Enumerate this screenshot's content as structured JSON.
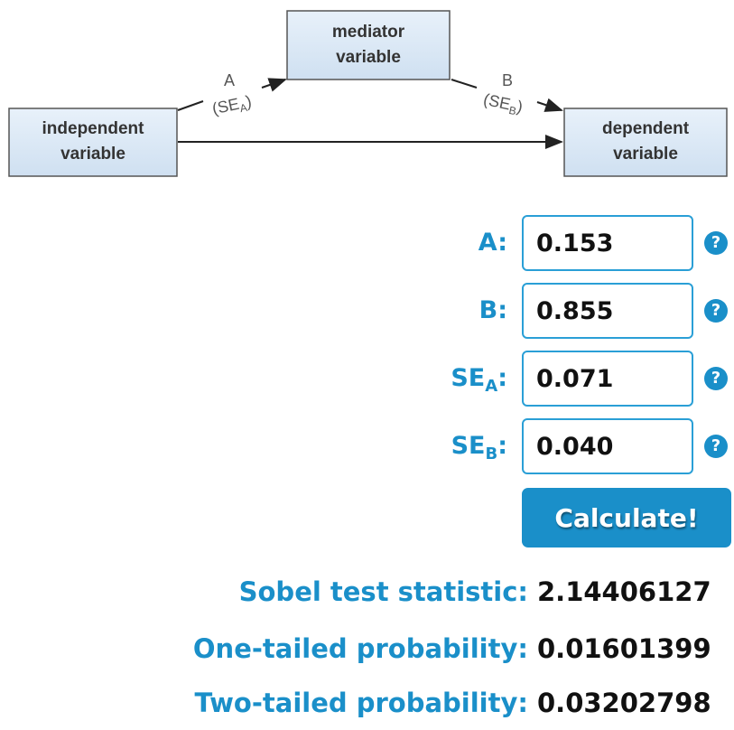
{
  "diagram": {
    "nodes": [
      {
        "lines": [
          "independent",
          "variable"
        ]
      },
      {
        "lines": [
          "mediator",
          "variable"
        ]
      },
      {
        "lines": [
          "dependent",
          "variable"
        ]
      }
    ],
    "paths": [
      {
        "label": "A",
        "se_open": "(SE",
        "se_sub": "A",
        "se_close": ")"
      },
      {
        "label": "B",
        "se_open": "(SE",
        "se_sub": "B",
        "se_close": ")"
      }
    ]
  },
  "form": {
    "fields": [
      {
        "label": "A:",
        "value": "0.153",
        "help": "?"
      },
      {
        "label": "B:",
        "value": "0.855",
        "help": "?"
      },
      {
        "label": "SE",
        "sub": "A",
        "colon": ":",
        "value": "0.071",
        "help": "?"
      },
      {
        "label": "SE",
        "sub": "B",
        "colon": ":",
        "value": "0.040",
        "help": "?"
      }
    ],
    "button": "Calculate!"
  },
  "results": {
    "rows": [
      {
        "label": "Sobel test statistic:",
        "value": "2.14406127"
      },
      {
        "label": "One-tailed probability:",
        "value": "0.01601399"
      },
      {
        "label": "Two-tailed probability:",
        "value": "0.03202798"
      }
    ]
  }
}
